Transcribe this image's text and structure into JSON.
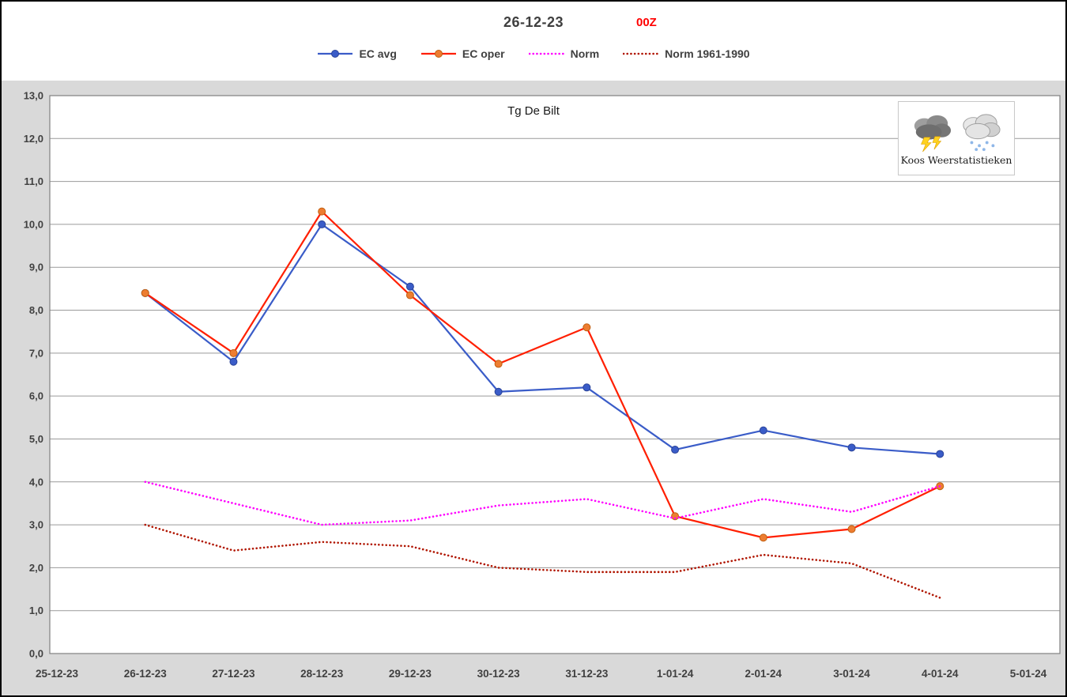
{
  "header": {
    "title": "26-12-23",
    "run_label": "00Z"
  },
  "logo": {
    "caption": "Koos Weerstatistieken",
    "icons": [
      "storm-cloud-icon",
      "snow-cloud-icon"
    ]
  },
  "chart_data": {
    "type": "line",
    "plot_title": "Tg De Bilt",
    "categories": [
      "25-12-23",
      "26-12-23",
      "27-12-23",
      "28-12-23",
      "29-12-23",
      "30-12-23",
      "31-12-23",
      "1-01-24",
      "2-01-24",
      "3-01-24",
      "4-01-24",
      "5-01-24"
    ],
    "ylim": [
      0,
      13
    ],
    "ytick_step": 1,
    "ytick_labels": [
      "0,0",
      "1,0",
      "2,0",
      "3,0",
      "4,0",
      "5,0",
      "6,0",
      "7,0",
      "8,0",
      "9,0",
      "10,0",
      "11,0",
      "12,0",
      "13,0"
    ],
    "grid": "horizontal",
    "legend_position": "top",
    "colors": {
      "grid": "#9a9a9a",
      "plot_border": "#808080",
      "plot_background": "#ffffff",
      "chart_background": "#d9d9d9",
      "tick_label": "#404040"
    },
    "series": [
      {
        "name": "EC avg",
        "color": "#3a5cc8",
        "marker": "circle",
        "marker_color": "#3a5cc8",
        "marker_edge": "#2a4398",
        "line_style": "solid",
        "values": [
          null,
          8.4,
          6.8,
          10.0,
          8.55,
          6.1,
          6.2,
          4.75,
          5.2,
          4.8,
          4.65,
          null
        ]
      },
      {
        "name": "EC oper",
        "color": "#ff1f00",
        "marker": "circle",
        "marker_color": "#ed7d31",
        "marker_edge": "#c05f10",
        "line_style": "solid",
        "values": [
          null,
          8.4,
          7.0,
          10.3,
          8.35,
          6.75,
          7.6,
          3.2,
          2.7,
          2.9,
          3.9,
          null
        ]
      },
      {
        "name": "Norm",
        "color": "#ff00ff",
        "marker": "none",
        "line_style": "dotted",
        "values": [
          null,
          4.0,
          3.5,
          3.0,
          3.1,
          3.45,
          3.6,
          3.15,
          3.6,
          3.3,
          3.9,
          null
        ]
      },
      {
        "name": "Norm 1961-1990",
        "color": "#b01500",
        "marker": "none",
        "line_style": "dotted",
        "values": [
          null,
          3.0,
          2.4,
          2.6,
          2.5,
          2.0,
          1.9,
          1.9,
          2.3,
          2.1,
          1.3,
          null
        ]
      }
    ]
  }
}
